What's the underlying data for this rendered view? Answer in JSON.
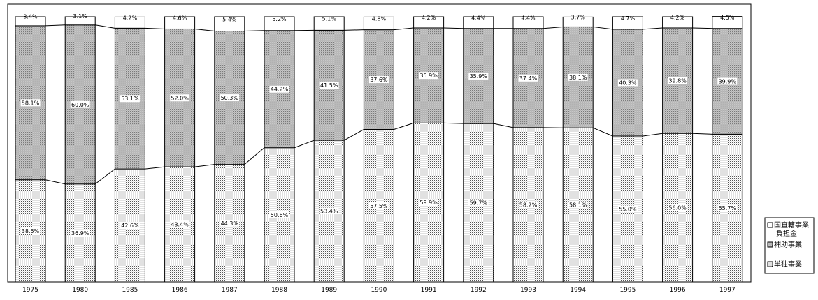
{
  "chart_data": {
    "type": "bar",
    "stacked": true,
    "normalized_percent": true,
    "categories": [
      "1975",
      "1980",
      "1985",
      "1986",
      "1987",
      "1988",
      "1989",
      "1990",
      "1991",
      "1992",
      "1993",
      "1994",
      "1995",
      "1996",
      "1997"
    ],
    "series": [
      {
        "name": "単独事業",
        "values": [
          38.5,
          36.9,
          42.6,
          43.4,
          44.3,
          50.6,
          53.4,
          57.5,
          59.9,
          59.7,
          58.2,
          58.1,
          55.0,
          56.0,
          55.7
        ]
      },
      {
        "name": "補助事業",
        "values": [
          58.1,
          60.0,
          53.1,
          52.0,
          50.3,
          44.2,
          41.5,
          37.6,
          35.9,
          35.9,
          37.4,
          38.1,
          40.3,
          39.8,
          39.9
        ]
      },
      {
        "name": "国直轄事業負担金",
        "values": [
          3.4,
          3.1,
          4.2,
          4.6,
          5.4,
          5.2,
          5.1,
          4.8,
          4.2,
          4.4,
          4.4,
          3.7,
          4.7,
          4.2,
          4.5
        ]
      }
    ],
    "data_labels": [
      [
        "38.5%",
        "36.9%",
        "42.6%",
        "43.4%",
        "44.3%",
        "50.6%",
        "53.4%",
        "57.5%",
        "59.9%",
        "59.7%",
        "58.2%",
        "58.1%",
        "55.0%",
        "56.0%",
        "55.7%"
      ],
      [
        "58.1%",
        "60.0%",
        "53.1%",
        "52.0%",
        "50.3%",
        "44.2%",
        "41.5%",
        "37.6%",
        "35.9%",
        "35.9%",
        "37.4%",
        "38.1%",
        "40.3%",
        "39.8%",
        "39.9%"
      ],
      [
        "3.4%",
        "3.1%",
        "4.2%",
        "4.6%",
        "5.4%",
        "5.2%",
        "5.1%",
        "4.8%",
        "4.2%",
        "4.4%",
        "4.4%",
        "3.7%",
        "4.7%",
        "4.2%",
        "4.5%"
      ]
    ],
    "legend": {
      "position": "right",
      "entries": [
        {
          "lines": [
            "国直轄事業",
            "負担金"
          ],
          "pattern": "blank"
        },
        {
          "lines": [
            "補助事業"
          ],
          "pattern": "grid"
        },
        {
          "lines": [
            "単独事業"
          ],
          "pattern": "dots"
        }
      ]
    },
    "ylim": [
      0,
      100
    ],
    "grid": false,
    "connector_lines": true,
    "title": "",
    "xlabel": "",
    "ylabel": ""
  }
}
